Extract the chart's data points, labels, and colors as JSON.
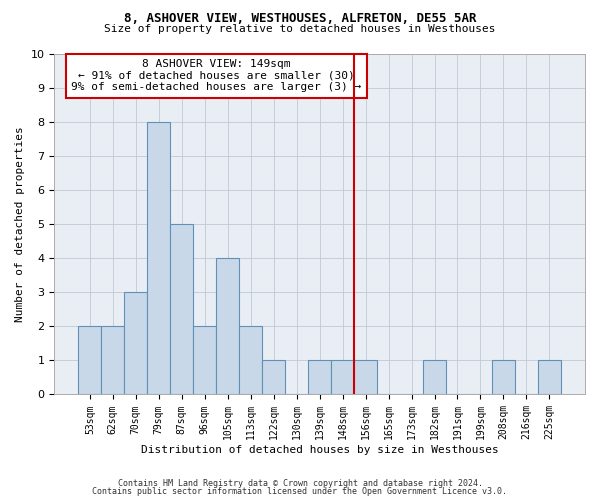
{
  "title1": "8, ASHOVER VIEW, WESTHOUSES, ALFRETON, DE55 5AR",
  "title2": "Size of property relative to detached houses in Westhouses",
  "xlabel": "Distribution of detached houses by size in Westhouses",
  "ylabel": "Number of detached properties",
  "categories": [
    "53sqm",
    "62sqm",
    "70sqm",
    "79sqm",
    "87sqm",
    "96sqm",
    "105sqm",
    "113sqm",
    "122sqm",
    "130sqm",
    "139sqm",
    "148sqm",
    "156sqm",
    "165sqm",
    "173sqm",
    "182sqm",
    "191sqm",
    "199sqm",
    "208sqm",
    "216sqm",
    "225sqm"
  ],
  "values": [
    2,
    2,
    3,
    8,
    5,
    2,
    4,
    2,
    1,
    0,
    1,
    1,
    1,
    0,
    0,
    1,
    0,
    0,
    1,
    0,
    1
  ],
  "bar_color": "#c8d8e8",
  "bar_edge_color": "#6090b8",
  "vline_x": 11.5,
  "vline_color": "#cc0000",
  "annotation_text": "8 ASHOVER VIEW: 149sqm\n← 91% of detached houses are smaller (30)\n9% of semi-detached houses are larger (3) →",
  "annotation_box_edgecolor": "#cc0000",
  "ylim": [
    0,
    10
  ],
  "yticks": [
    0,
    1,
    2,
    3,
    4,
    5,
    6,
    7,
    8,
    9,
    10
  ],
  "footer1": "Contains HM Land Registry data © Crown copyright and database right 2024.",
  "footer2": "Contains public sector information licensed under the Open Government Licence v3.0.",
  "bg_color": "#e8eef4",
  "grid_color": "#c0cad4",
  "title_fontsize": 9,
  "subtitle_fontsize": 8,
  "tick_fontsize": 7,
  "ylabel_fontsize": 8,
  "xlabel_fontsize": 8,
  "annot_fontsize": 8,
  "footer_fontsize": 6
}
